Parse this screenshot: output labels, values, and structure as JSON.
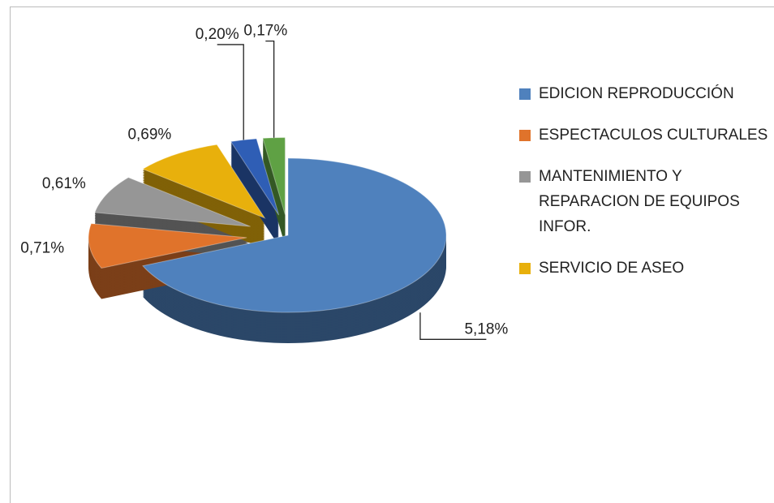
{
  "chart_data": {
    "type": "pie",
    "categories": [
      "EDICION REPRODUCCIÓN",
      "ESPECTACULOS CULTURALES",
      "MANTENIMIENTO Y REPARACION DE EQUIPOS INFOR.",
      "SERVICIO DE ASEO",
      null,
      null
    ],
    "values": [
      5.18,
      0.71,
      0.61,
      0.69,
      0.2,
      0.17
    ],
    "value_labels": [
      "5,18%",
      "0,71%",
      "0,61%",
      "0,69%",
      "0,20%",
      "0,17%"
    ],
    "colors": [
      "#4f81bd",
      "#e0732b",
      "#969696",
      "#e8b00c",
      "#2f5eb5",
      "#5fa144"
    ],
    "legend": "right"
  }
}
